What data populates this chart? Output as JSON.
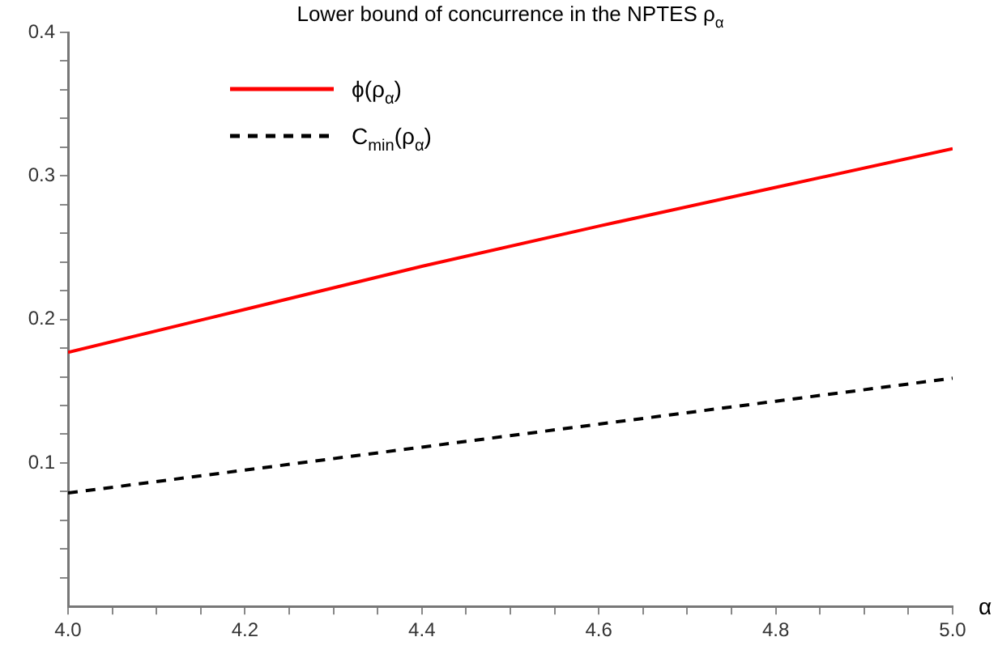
{
  "chart_data": {
    "type": "line",
    "title": "Lower bound of concurrence in the NPTES ρ$_{α}$",
    "xlabel": "α",
    "x": [
      4.0,
      4.2,
      4.4,
      4.6,
      4.8,
      5.0
    ],
    "series": [
      {
        "name": "ϕ(ρ$_{α}$)",
        "color": "#ff0000",
        "line_style": "solid",
        "values": [
          0.177,
          0.207,
          0.237,
          0.265,
          0.292,
          0.319
        ]
      },
      {
        "name": "C$_{min}$(ρ$_{α}$)",
        "color": "#000000",
        "line_style": "dashed",
        "values": [
          0.079,
          0.095,
          0.111,
          0.127,
          0.143,
          0.159
        ]
      }
    ],
    "xlim": [
      4.0,
      5.0
    ],
    "xticks": [
      {
        "value": 4.0,
        "label": "4.0"
      },
      {
        "value": 4.05,
        "label": null
      },
      {
        "value": 4.1,
        "label": null
      },
      {
        "value": 4.15,
        "label": null
      },
      {
        "value": 4.2,
        "label": "4.2"
      },
      {
        "value": 4.25,
        "label": null
      },
      {
        "value": 4.3,
        "label": null
      },
      {
        "value": 4.35,
        "label": null
      },
      {
        "value": 4.4,
        "label": "4.4"
      },
      {
        "value": 4.45,
        "label": null
      },
      {
        "value": 4.5,
        "label": null
      },
      {
        "value": 4.55,
        "label": null
      },
      {
        "value": 4.6,
        "label": "4.6"
      },
      {
        "value": 4.65,
        "label": null
      },
      {
        "value": 4.7,
        "label": null
      },
      {
        "value": 4.75,
        "label": null
      },
      {
        "value": 4.8,
        "label": "4.8"
      },
      {
        "value": 4.85,
        "label": null
      },
      {
        "value": 4.9,
        "label": null
      },
      {
        "value": 4.95,
        "label": null
      },
      {
        "value": 5.0,
        "label": "5.0"
      }
    ],
    "ylim": [
      0,
      0.4
    ],
    "yticks": [
      {
        "value": 0.02,
        "label": null
      },
      {
        "value": 0.04,
        "label": null
      },
      {
        "value": 0.06,
        "label": null
      },
      {
        "value": 0.08,
        "label": null
      },
      0.1,
      {
        "value": 0.12,
        "label": null
      },
      {
        "value": 0.14,
        "label": null
      },
      {
        "value": 0.16,
        "label": null
      },
      {
        "value": 0.18,
        "label": null
      },
      0.2,
      {
        "value": 0.22,
        "label": null
      },
      {
        "value": 0.24,
        "label": null
      },
      {
        "value": 0.26,
        "label": null
      },
      {
        "value": 0.28,
        "label": null
      },
      0.3,
      {
        "value": 0.32,
        "label": null
      },
      {
        "value": 0.34,
        "label": null
      },
      {
        "value": 0.36,
        "label": null
      },
      {
        "value": 0.38,
        "label": null
      },
      0.4
    ],
    "grid": false,
    "legend": "top left",
    "marker": "none"
  }
}
